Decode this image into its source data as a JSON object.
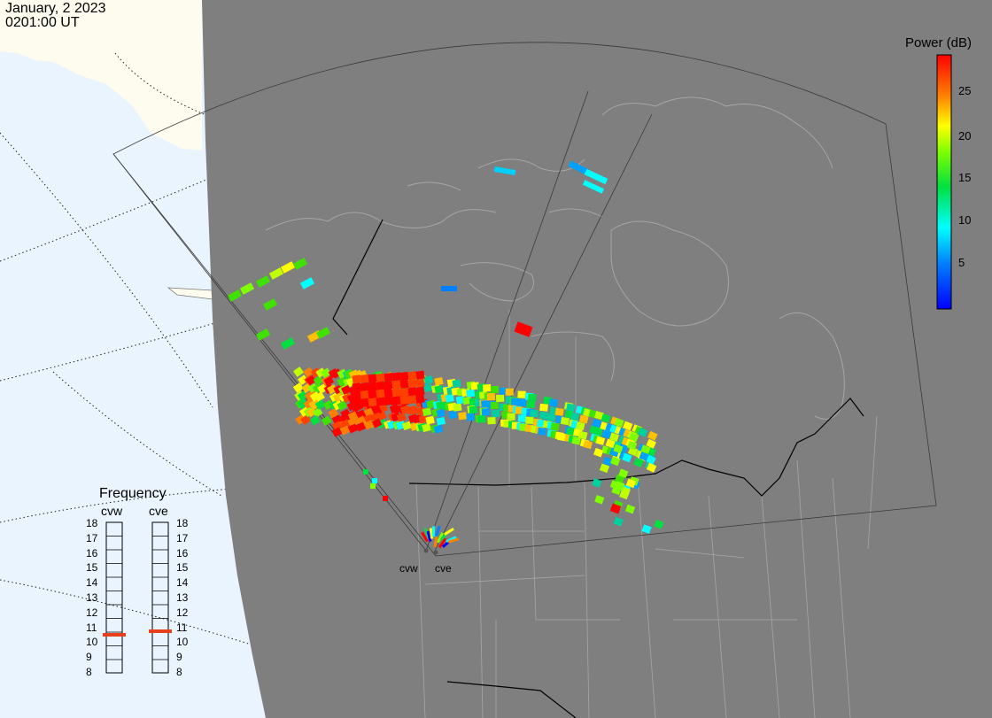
{
  "header": {
    "date": "January, 2 2023",
    "time": "0201:00 UT"
  },
  "power_scale": {
    "title": "Power (dB)",
    "ticks": [
      "25",
      "20",
      "15",
      "10",
      "5"
    ],
    "colors": [
      "#ff0000",
      "#ff8000",
      "#ffff00",
      "#80ff00",
      "#00e040",
      "#00ffff",
      "#0080ff",
      "#0000ff"
    ]
  },
  "frequency_panel": {
    "title": "Frequency",
    "radar_left": "cvw",
    "radar_right": "cve",
    "ticks": [
      "18",
      "17",
      "16",
      "15",
      "14",
      "13",
      "12",
      "11",
      "10",
      "9",
      "8"
    ],
    "marker_color": "#e8401c"
  },
  "radar_sites": {
    "west": "cvw",
    "east": "cve"
  },
  "map_colors": {
    "ocean": "#eaf4fe",
    "land_outside": "#fdfcee",
    "night": "#7f7f7f",
    "coast": "#a8a8a8",
    "border": "#000000"
  }
}
